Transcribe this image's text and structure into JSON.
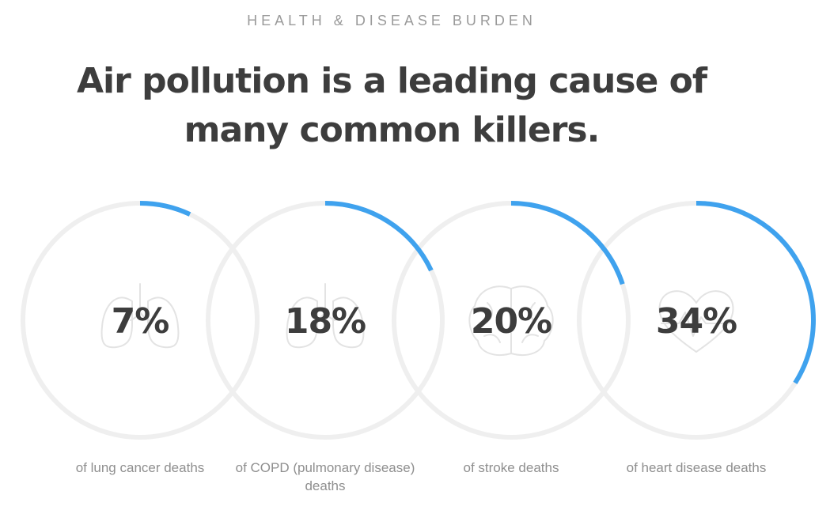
{
  "header": {
    "eyebrow": "HEALTH & DISEASE BURDEN",
    "headline_line1": "Air pollution is a leading cause of",
    "headline_line2": "many common killers."
  },
  "colors": {
    "accent": "#3fa2ee",
    "track": "#efefef",
    "value_text": "#3d3d3d",
    "caption_text": "#8f8f8f",
    "icon_stroke": "#e3e3e3"
  },
  "chart_data": {
    "type": "radial-progress",
    "title": "Air pollution is a leading cause of many common killers.",
    "subtitle": "HEALTH & DISEASE BURDEN",
    "categories": [
      "of lung cancer deaths",
      "of COPD (pulmonary disease) deaths",
      "of stroke deaths",
      "of heart disease deaths"
    ],
    "values": [
      7,
      18,
      20,
      34
    ],
    "unit": "%",
    "items": [
      {
        "value": 7,
        "label": "7%",
        "caption": "of lung cancer deaths",
        "icon": "lungs-icon"
      },
      {
        "value": 18,
        "label": "18%",
        "caption": "of COPD (pulmonary disease) deaths",
        "icon": "lungs-icon"
      },
      {
        "value": 20,
        "label": "20%",
        "caption": "of stroke deaths",
        "icon": "brain-icon"
      },
      {
        "value": 34,
        "label": "34%",
        "caption": "of heart disease deaths",
        "icon": "heart-icon"
      }
    ]
  }
}
